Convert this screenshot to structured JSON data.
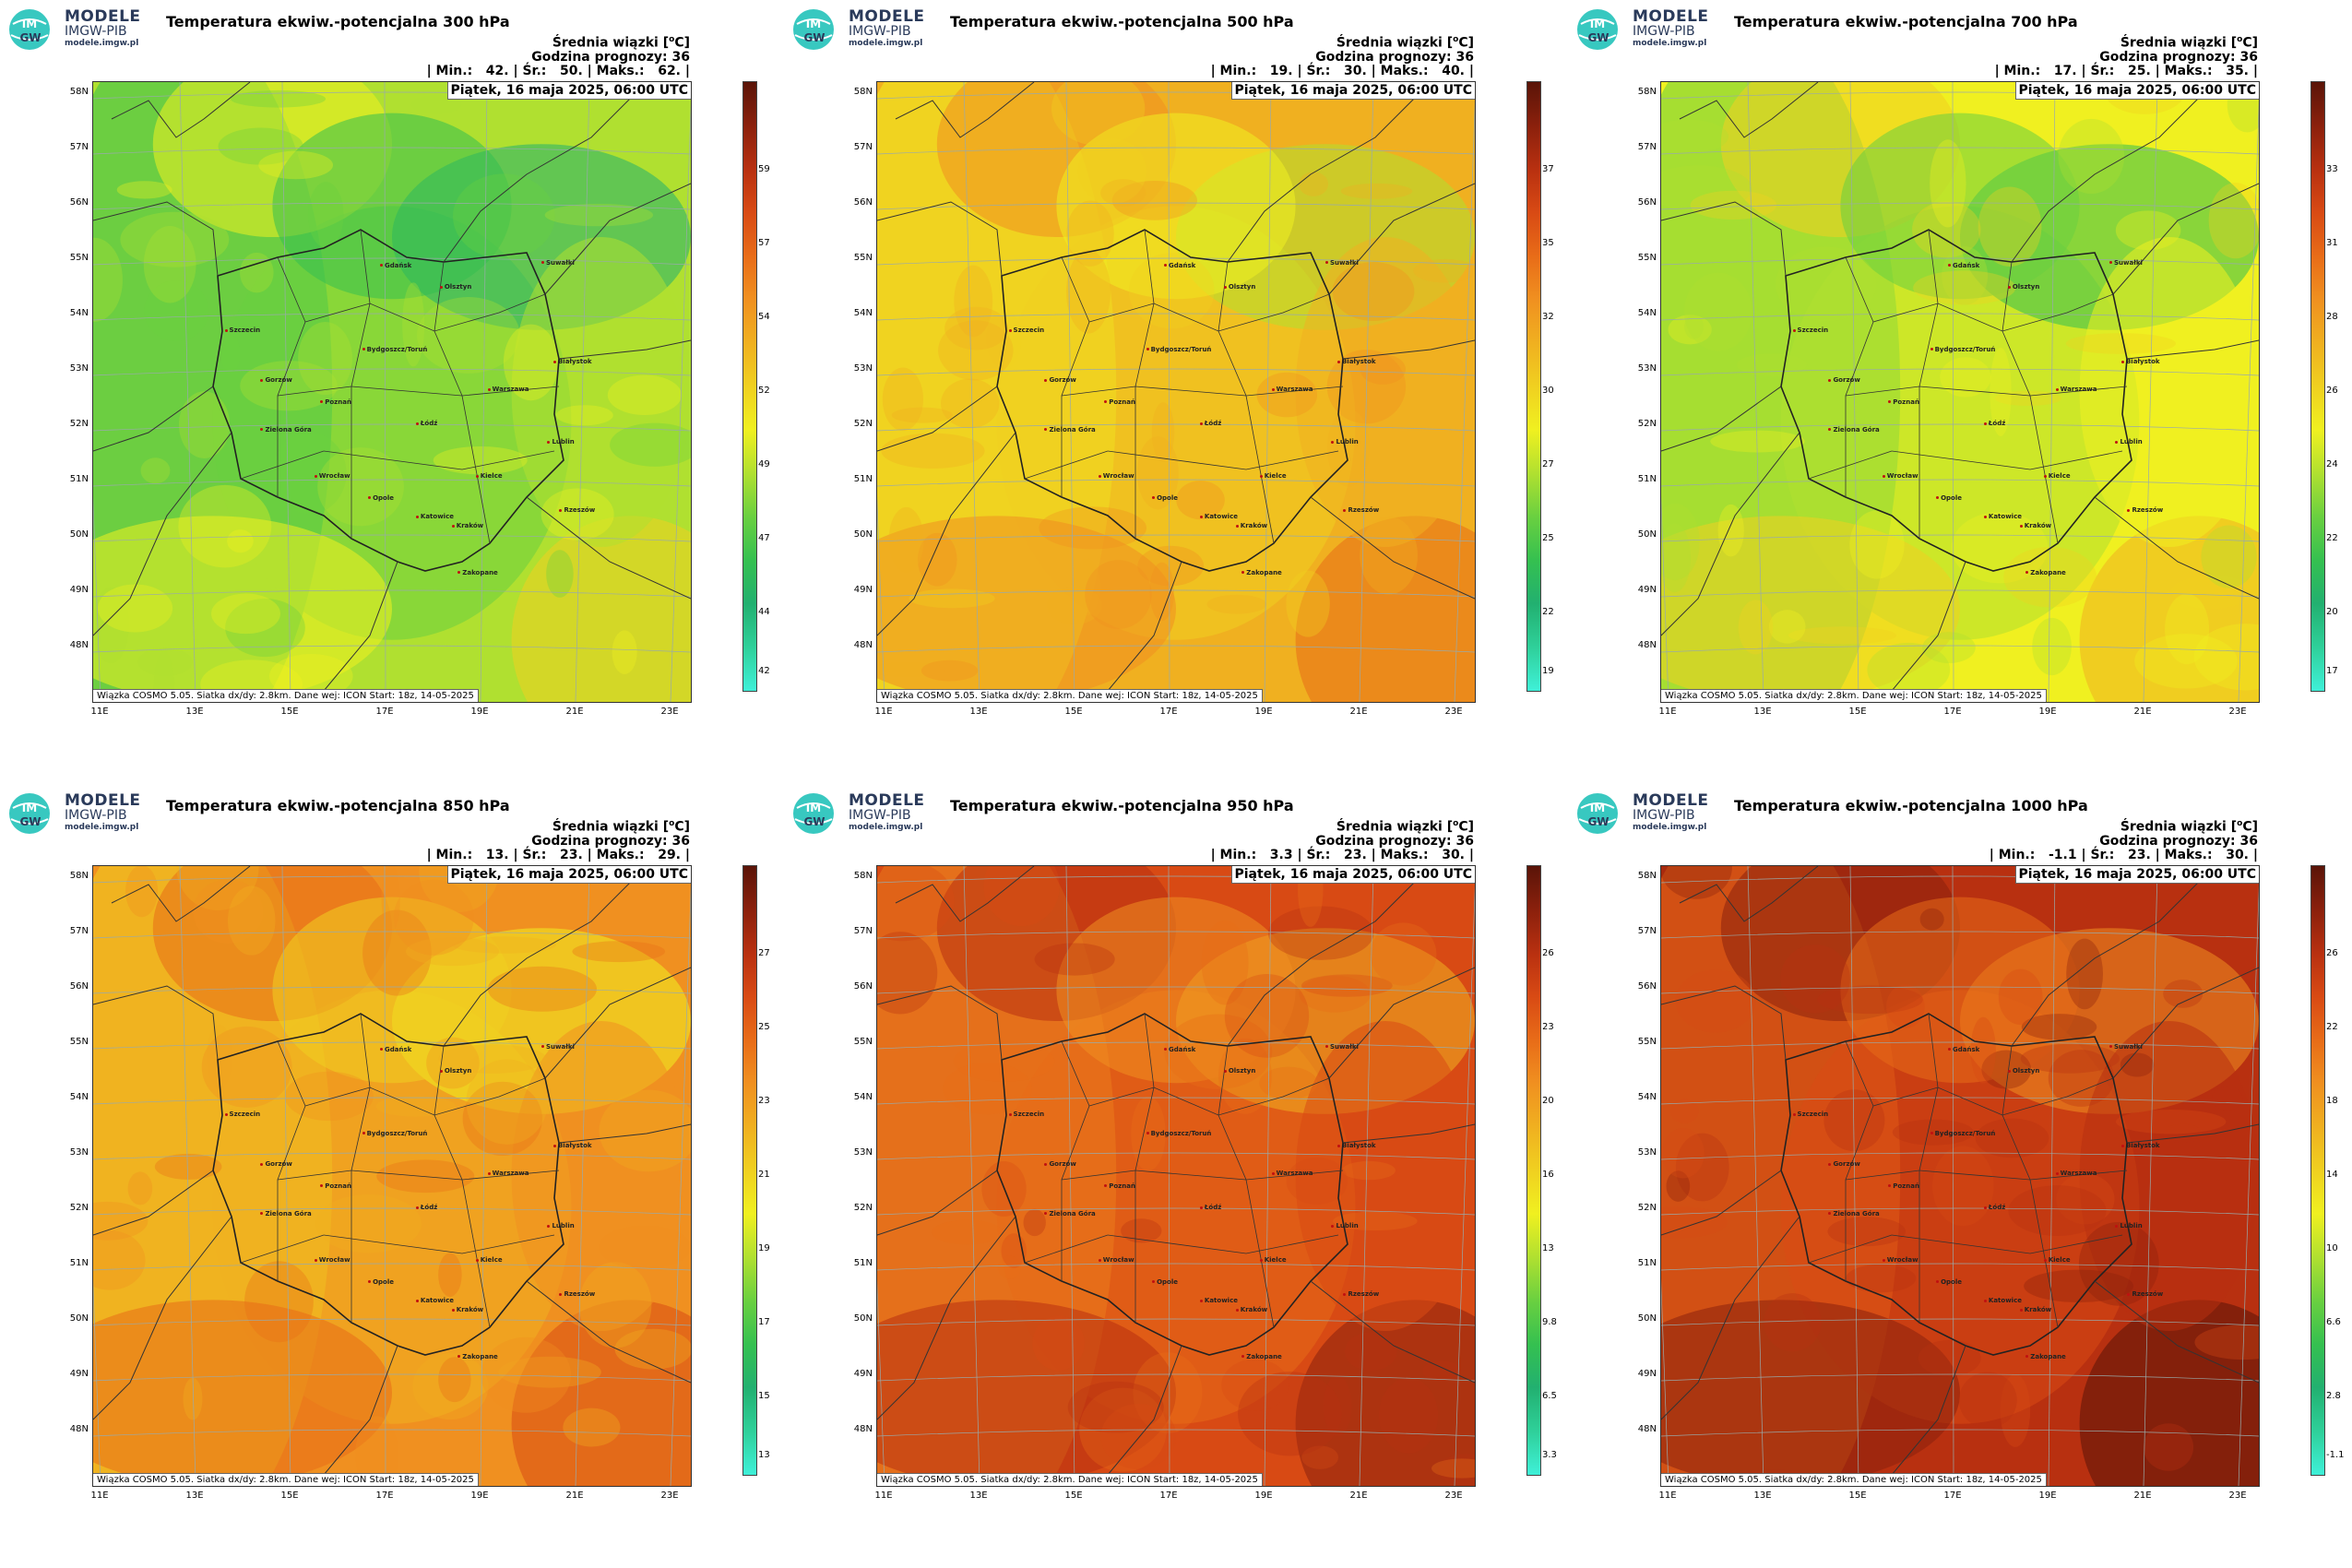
{
  "logo": {
    "line1": "MODELE",
    "line2": "IMGW-PIB",
    "line3": "modele.imgw.pl",
    "badge_top": "IM",
    "badge_bottom": "GW"
  },
  "common": {
    "avg_label": "Średnia wiązki [°C]",
    "forecast_hour": "Godzina prognozy: 36",
    "date": "Piątek, 16 maja 2025, 06:00 UTC",
    "footer": "Wiązka COSMO 5.05. Siatka dx/dy: 2.8km. Dane wej: ICON Start: 18z, 14-05-2025",
    "lat_labels": [
      "58N",
      "57N",
      "56N",
      "55N",
      "54N",
      "53N",
      "52N",
      "51N",
      "50N",
      "49N",
      "48N"
    ],
    "lon_labels": [
      "11E",
      "13E",
      "15E",
      "17E",
      "19E",
      "21E",
      "23E"
    ],
    "cities": [
      "Gdańsk",
      "Olsztyn",
      "Suwałki",
      "Szczecin",
      "Bydgoszcz/Toruń",
      "Białystok",
      "Gorzów",
      "Warszawa",
      "Poznań",
      "Łódź",
      "Zielona Góra",
      "Lublin",
      "Wrocław",
      "Kielce",
      "Opole",
      "Rzeszów",
      "Katowice",
      "Kraków",
      "Zakopane"
    ]
  },
  "panels": [
    {
      "title": "Temperatura ekwiw.-potencjalna 300 hPa",
      "stats": "| Min.:   42. | Śr.:   50. | Maks.:   62. |",
      "min": 42,
      "avg": 50,
      "max": 62,
      "ticks": [
        "59",
        "57",
        "54",
        "52",
        "49",
        "47",
        "44",
        "42"
      ]
    },
    {
      "title": "Temperatura ekwiw.-potencjalna 500 hPa",
      "stats": "| Min.:   19. | Śr.:   30. | Maks.:   40. |",
      "min": 19,
      "avg": 30,
      "max": 40,
      "ticks": [
        "37",
        "35",
        "32",
        "30",
        "27",
        "25",
        "22",
        "19"
      ]
    },
    {
      "title": "Temperatura ekwiw.-potencjalna 700 hPa",
      "stats": "| Min.:   17. | Śr.:   25. | Maks.:   35. |",
      "min": 17,
      "avg": 25,
      "max": 35,
      "ticks": [
        "33",
        "31",
        "28",
        "26",
        "24",
        "22",
        "20",
        "17"
      ]
    },
    {
      "title": "Temperatura ekwiw.-potencjalna 850 hPa",
      "stats": "| Min.:   13. | Śr.:   23. | Maks.:   29. |",
      "min": 13,
      "avg": 23,
      "max": 29,
      "ticks": [
        "27",
        "25",
        "23",
        "21",
        "19",
        "17",
        "15",
        "13"
      ]
    },
    {
      "title": "Temperatura ekwiw.-potencjalna 950 hPa",
      "stats": "| Min.:   3.3 | Śr.:   23. | Maks.:   30. |",
      "min": 3.3,
      "avg": 23,
      "max": 30,
      "ticks": [
        "26",
        "23",
        "20",
        "16",
        "13",
        "9.8",
        "6.5",
        "3.3"
      ]
    },
    {
      "title": "Temperatura ekwiw.-potencjalna 1000 hPa",
      "stats": "| Min.:   -1.1 | Śr.:   23. | Maks.:   30. |",
      "min": -1.1,
      "avg": 23,
      "max": 30,
      "ticks": [
        "26",
        "22",
        "18",
        "14",
        "10",
        "6.6",
        "2.8",
        "-1.1"
      ]
    }
  ],
  "colors": {
    "scale": [
      "#3ff0d8",
      "#2fd09a",
      "#22b070",
      "#35c050",
      "#6ad040",
      "#b0e030",
      "#f0f020",
      "#f0d020",
      "#f0b020",
      "#f09020",
      "#e86c18",
      "#d84a14",
      "#b83010",
      "#8a200c",
      "#5a1408"
    ]
  }
}
